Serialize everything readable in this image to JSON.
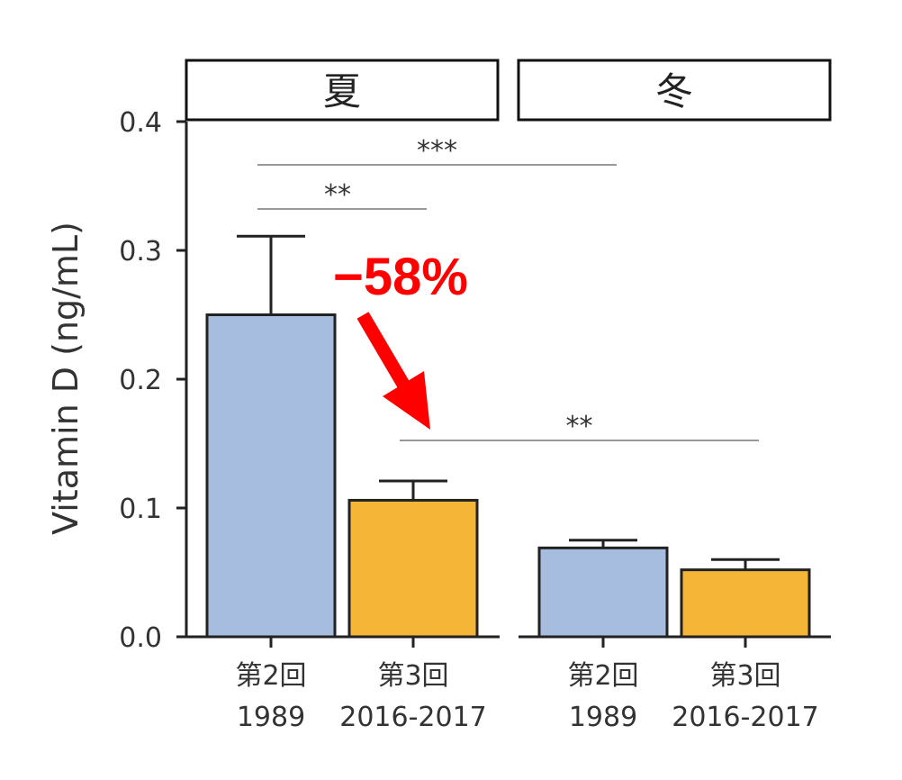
{
  "chart_data": {
    "type": "bar",
    "ylabel": "Vitamin D (ng/mL)",
    "ylim": [
      0,
      0.4
    ],
    "yticks": [
      "0.0",
      "0.1",
      "0.2",
      "0.3",
      "0.4"
    ],
    "grid": false,
    "panels": [
      {
        "label": "夏",
        "bars": [
          {
            "label_line1": "第2回",
            "label_line2": "1989",
            "value": 0.25,
            "error": 0.061,
            "color": "#a7bddf"
          },
          {
            "label_line1": "第3回",
            "label_line2": "2016-2017",
            "value": 0.106,
            "error": 0.015,
            "color": "#f5b537"
          }
        ]
      },
      {
        "label": "冬",
        "bars": [
          {
            "label_line1": "第2回",
            "label_line2": "1989",
            "value": 0.069,
            "error": 0.006,
            "color": "#a7bddf"
          },
          {
            "label_line1": "第3回",
            "label_line2": "2016-2017",
            "value": 0.052,
            "error": 0.008,
            "color": "#f5b537"
          }
        ]
      }
    ],
    "significance": [
      {
        "from": [
          0,
          0
        ],
        "to": [
          0,
          1
        ],
        "label": "**"
      },
      {
        "from": [
          0,
          0
        ],
        "to": [
          1,
          0
        ],
        "label": "***"
      },
      {
        "from": [
          0,
          1
        ],
        "to": [
          1,
          1
        ],
        "label": "**"
      }
    ],
    "annotation": {
      "text": "−58%",
      "color": "#ff0000"
    }
  }
}
